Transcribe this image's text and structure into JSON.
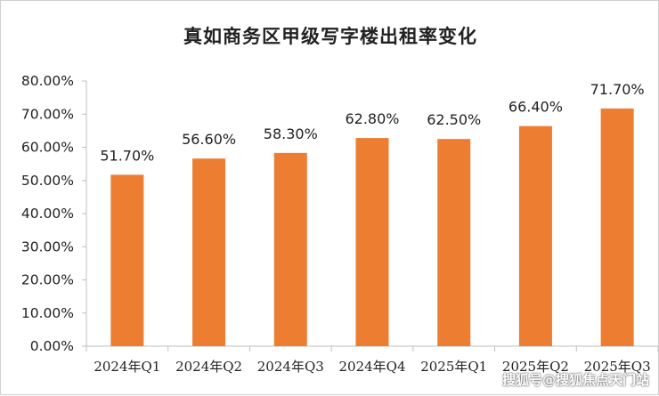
{
  "chart_data": {
    "type": "bar",
    "title": "真如商务区甲级写字楼出租率变化",
    "xlabel": "",
    "ylabel": "",
    "categories": [
      "2024年Q1",
      "2024年Q2",
      "2024年Q3",
      "2024年Q4",
      "2025年Q1",
      "2025年Q2",
      "2025年Q3"
    ],
    "values": [
      51.7,
      56.6,
      58.3,
      62.8,
      62.5,
      66.4,
      71.7
    ],
    "data_labels": [
      "51.70%",
      "56.60%",
      "58.30%",
      "62.80%",
      "62.50%",
      "66.40%",
      "71.70%"
    ],
    "ylim": [
      0,
      80
    ],
    "y_ticks": [
      0,
      10,
      20,
      30,
      40,
      50,
      60,
      70,
      80
    ],
    "y_tick_labels": [
      "0.00%",
      "10.00%",
      "20.00%",
      "30.00%",
      "40.00%",
      "50.00%",
      "60.00%",
      "70.00%",
      "80.00%"
    ],
    "grid": false,
    "legend": "none",
    "bar_color": "#ED7D31"
  },
  "watermark": "搜狐号@搜狐焦点天门站"
}
